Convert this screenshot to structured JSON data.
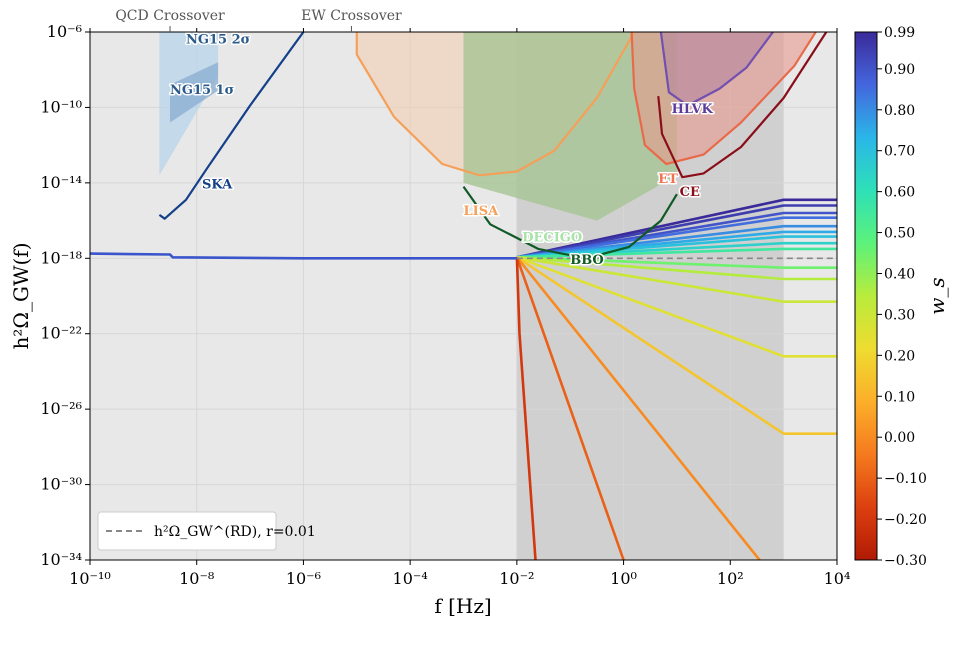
{
  "chart_data": {
    "type": "line",
    "xlabel": "f  [Hz]",
    "ylabel": "h²Ω_GW(f)",
    "xscale": "log",
    "yscale": "log",
    "xlim": [
      1e-10,
      10000.0
    ],
    "ylim": [
      1e-34,
      1e-06
    ],
    "grid": true,
    "x_ticks": [
      {
        "value": -10,
        "label": "10⁻¹⁰"
      },
      {
        "value": -8,
        "label": "10⁻⁸"
      },
      {
        "value": -6,
        "label": "10⁻⁶"
      },
      {
        "value": -4,
        "label": "10⁻⁴"
      },
      {
        "value": -2,
        "label": "10⁻²"
      },
      {
        "value": 0,
        "label": "10⁰"
      },
      {
        "value": 2,
        "label": "10²"
      },
      {
        "value": 4,
        "label": "10⁴"
      }
    ],
    "y_ticks": [
      {
        "value": -6,
        "label": "10⁻⁶"
      },
      {
        "value": -10,
        "label": "10⁻¹⁰"
      },
      {
        "value": -14,
        "label": "10⁻¹⁴"
      },
      {
        "value": -18,
        "label": "10⁻¹⁸"
      },
      {
        "value": -22,
        "label": "10⁻²²"
      },
      {
        "value": -26,
        "label": "10⁻²⁶"
      },
      {
        "value": -30,
        "label": "10⁻³⁰"
      },
      {
        "value": -34,
        "label": "10⁻³⁴"
      }
    ],
    "top_annotations": [
      {
        "label": "QCD Crossover",
        "x_log10": -8.5
      },
      {
        "label": "EW Crossover",
        "x_log10": -5.1
      }
    ],
    "colorbar": {
      "label": "w_s",
      "min": -0.3,
      "max": 0.99,
      "ticks": [
        "0.99",
        "0.90",
        "0.80",
        "0.70",
        "0.60",
        "0.50",
        "0.40",
        "0.30",
        "0.20",
        "0.10",
        "0.00",
        "−0.10",
        "−0.20",
        "−0.30"
      ],
      "tick_values": [
        0.99,
        0.9,
        0.8,
        0.7,
        0.6,
        0.5,
        0.4,
        0.3,
        0.2,
        0.1,
        0.0,
        -0.1,
        -0.2,
        -0.3
      ],
      "colors": [
        "#3a2a9a",
        "#4466dd",
        "#2ab6e8",
        "#2ee0b8",
        "#5cf27a",
        "#b8ec3c",
        "#eedc30",
        "#fcaf2a",
        "#f57a1e",
        "#dc4010",
        "#b01a04"
      ]
    },
    "legend": {
      "location": "lower-left",
      "entries": [
        {
          "label": "h²Ω_GW^(RD), r=0.01",
          "style": "dashed",
          "color": "#888888"
        }
      ]
    },
    "background_regions": [
      {
        "name": "reheating-window",
        "x_from": -2,
        "x_to": 3,
        "color": "#d0d0d0"
      }
    ],
    "baseline_curve": {
      "name": "radiation-era spectrum",
      "color": "#3a55cc",
      "points": [
        [
          -10,
          -17.75
        ],
        [
          -8.5,
          -17.8
        ],
        [
          -8.45,
          -17.95
        ],
        [
          -6,
          -18.0
        ],
        [
          -2,
          -18.0
        ]
      ]
    },
    "rd_reference": {
      "x_from": -2,
      "x_to": 4,
      "y": -18.0
    },
    "ws_series": [
      {
        "w": 0.99,
        "points": [
          [
            -2,
            -17.95
          ],
          [
            3,
            -14.9
          ],
          [
            4,
            -14.9
          ]
        ]
      },
      {
        "w": 0.95,
        "points": [
          [
            -2,
            -17.95
          ],
          [
            3,
            -15.2
          ],
          [
            4,
            -15.2
          ]
        ]
      },
      {
        "w": 0.9,
        "points": [
          [
            -2,
            -17.95
          ],
          [
            3,
            -15.6
          ],
          [
            4,
            -15.6
          ]
        ]
      },
      {
        "w": 0.85,
        "points": [
          [
            -2,
            -17.95
          ],
          [
            3,
            -15.85
          ],
          [
            4,
            -15.85
          ]
        ]
      },
      {
        "w": 0.8,
        "points": [
          [
            -2,
            -17.95
          ],
          [
            3,
            -16.3
          ],
          [
            4,
            -16.3
          ]
        ]
      },
      {
        "w": 0.75,
        "points": [
          [
            -2,
            -17.95
          ],
          [
            3,
            -16.6
          ],
          [
            4,
            -16.6
          ]
        ]
      },
      {
        "w": 0.7,
        "points": [
          [
            -2,
            -17.95
          ],
          [
            3,
            -16.85
          ],
          [
            4,
            -16.85
          ]
        ]
      },
      {
        "w": 0.65,
        "points": [
          [
            -2,
            -17.95
          ],
          [
            3,
            -17.2
          ],
          [
            4,
            -17.2
          ]
        ]
      },
      {
        "w": 0.55,
        "points": [
          [
            -2,
            -17.95
          ],
          [
            3,
            -17.5
          ],
          [
            4,
            -17.5
          ]
        ]
      },
      {
        "w": 0.45,
        "points": [
          [
            -2,
            -17.95
          ],
          [
            3,
            -18.5
          ],
          [
            4,
            -18.5
          ]
        ]
      },
      {
        "w": 0.35,
        "points": [
          [
            -2,
            -17.95
          ],
          [
            3,
            -19.1
          ],
          [
            4,
            -19.1
          ]
        ]
      },
      {
        "w": 0.3,
        "points": [
          [
            -2,
            -17.95
          ],
          [
            3,
            -20.3
          ],
          [
            4,
            -20.3
          ]
        ]
      },
      {
        "w": 0.25,
        "points": [
          [
            -2,
            -17.95
          ],
          [
            3,
            -23.2
          ],
          [
            4,
            -23.2
          ]
        ]
      },
      {
        "w": 0.15,
        "points": [
          [
            -2,
            -17.95
          ],
          [
            3,
            -27.3
          ],
          [
            4,
            -27.3
          ]
        ]
      },
      {
        "w": 0.0,
        "points": [
          [
            -2,
            -17.95
          ],
          [
            2.55,
            -34
          ]
        ]
      },
      {
        "w": -0.1,
        "points": [
          [
            -2,
            -17.95
          ],
          [
            0,
            -34
          ]
        ]
      },
      {
        "w": -0.2,
        "points": [
          [
            -2,
            -17.95
          ],
          [
            -1.95,
            -22
          ],
          [
            -1.65,
            -34
          ]
        ]
      }
    ],
    "detectors": [
      {
        "name": "NG15 2σ",
        "label_x": -8.2,
        "label_y": -6.6,
        "color": "#b8d4ea",
        "label_color": "#2a5a8a",
        "region": [
          [
            -8.7,
            -6
          ],
          [
            -7.6,
            -6
          ],
          [
            -7.6,
            -8.3
          ],
          [
            -8.7,
            -13.6
          ]
        ]
      },
      {
        "name": "NG15 1σ",
        "label_x": -8.5,
        "label_y": -9.3,
        "color": "#8aacd2",
        "label_color": "#2a5a8a",
        "region": [
          [
            -8.5,
            -8.8
          ],
          [
            -7.6,
            -7.6
          ],
          [
            -7.6,
            -9.1
          ],
          [
            -8.5,
            -10.8
          ]
        ]
      },
      {
        "name": "SKA",
        "label_x": -7.9,
        "label_y": -14.3,
        "color": "#14408a",
        "label_color": "#14408a",
        "curve": [
          [
            -8.7,
            -15.7
          ],
          [
            -8.6,
            -15.9
          ],
          [
            -8.2,
            -14.9
          ],
          [
            -7.8,
            -13.2
          ],
          [
            -7.0,
            -9.9
          ],
          [
            -6.0,
            -6.0
          ]
        ]
      },
      {
        "name": "LISA",
        "label_x": -3.0,
        "label_y": -15.7,
        "color": "#f4a058",
        "label_color": "#f4a058",
        "curve": [
          [
            -5.0,
            -6.0
          ],
          [
            -5.0,
            -7.2
          ],
          [
            -4.3,
            -10.5
          ],
          [
            -3.4,
            -13.0
          ],
          [
            -2.7,
            -13.6
          ],
          [
            -2.0,
            -13.4
          ],
          [
            -1.3,
            -12.3
          ],
          [
            -0.5,
            -9.5
          ],
          [
            0.2,
            -6.0
          ]
        ],
        "fill": "#f2cdb1"
      },
      {
        "name": "DECIGO",
        "label_x": -1.9,
        "label_y": -17.1,
        "color": "#96d896",
        "label_color": "#a8e4a8",
        "region": [
          [
            -3.0,
            -6.0
          ],
          [
            1.0,
            -6.0
          ],
          [
            1.0,
            -13.6
          ],
          [
            -0.5,
            -16.0
          ],
          [
            -3.0,
            -14.0
          ]
        ],
        "fill": "#a6c494"
      },
      {
        "name": "BBO",
        "label_x": -1.0,
        "label_y": -18.3,
        "color": "#105a26",
        "label_color": "#105a26",
        "curve": [
          [
            -3.0,
            -14.2
          ],
          [
            -2.5,
            -16.2
          ],
          [
            -1.6,
            -17.5
          ],
          [
            -0.7,
            -18.0
          ],
          [
            0.1,
            -17.4
          ],
          [
            0.7,
            -16.0
          ],
          [
            1.0,
            -14.6
          ]
        ]
      },
      {
        "name": "ET",
        "label_x": 0.65,
        "label_y": -14.0,
        "color": "#e86a4a",
        "label_color": "#f07050",
        "curve": [
          [
            0.15,
            -6.0
          ],
          [
            0.2,
            -9.0
          ],
          [
            0.4,
            -12.0
          ],
          [
            0.8,
            -13.0
          ],
          [
            1.5,
            -12.5
          ],
          [
            2.2,
            -10.8
          ],
          [
            3.2,
            -7.8
          ],
          [
            3.6,
            -6.0
          ]
        ],
        "fill": "#e89a8e"
      },
      {
        "name": "CE",
        "label_x": 1.05,
        "label_y": -14.7,
        "color": "#8a0e1a",
        "label_color": "#8a0e1a",
        "curve": [
          [
            0.65,
            -9.4
          ],
          [
            0.72,
            -11.4
          ],
          [
            1.1,
            -13.7
          ],
          [
            1.5,
            -13.5
          ],
          [
            2.2,
            -12.1
          ],
          [
            3.0,
            -9.5
          ],
          [
            3.8,
            -6.0
          ]
        ]
      },
      {
        "name": "HLVK",
        "label_x": 0.9,
        "label_y": -10.3,
        "color": "#7250b0",
        "label_color": "#5a3a9a",
        "curve": [
          [
            0.7,
            -6.0
          ],
          [
            0.85,
            -9.2
          ],
          [
            1.2,
            -9.9
          ],
          [
            1.8,
            -9.0
          ],
          [
            2.3,
            -7.9
          ],
          [
            2.8,
            -6.0
          ]
        ],
        "fill": "#b4869e"
      }
    ]
  }
}
